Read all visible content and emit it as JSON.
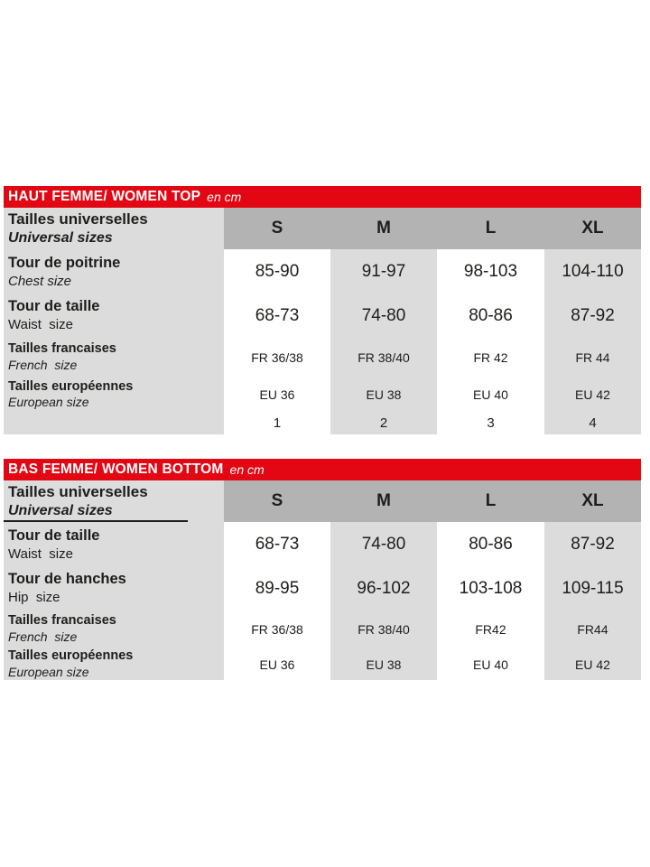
{
  "colors": {
    "accent_red": "#e30613",
    "header_gray": "#b3b3b3",
    "cell_gray": "#dcdcdc",
    "text": "#1d1d1b",
    "title_text": "#ffffff"
  },
  "table_top": {
    "title": "HAUT FEMME/ WOMEN TOP",
    "unit": "en cm",
    "header": {
      "fr": "Tailles universelles",
      "en": "Universal sizes",
      "cols": [
        "S",
        "M",
        "L",
        "XL"
      ]
    },
    "rows": [
      {
        "fr": "Tour de poitrine",
        "en": "Chest size",
        "values": [
          "85-90",
          "91-97",
          "98-103",
          "104-110"
        ]
      },
      {
        "fr": "Tour de taille",
        "en": "Waist  size",
        "values": [
          "68-73",
          "74-80",
          "80-86",
          "87-92"
        ]
      },
      {
        "fr": "Tailles francaises",
        "en": "French  size",
        "values": [
          "FR 36/38",
          "FR 38/40",
          "FR 42",
          "FR 44"
        ]
      },
      {
        "fr": "Tailles européennes",
        "en": "European size",
        "values": [
          "EU 36",
          "EU 38",
          "EU 40",
          "EU 42"
        ]
      },
      {
        "fr": "",
        "en": "",
        "values": [
          "1",
          "2",
          "3",
          "4"
        ]
      }
    ]
  },
  "table_bottom": {
    "title": "BAS FEMME/ WOMEN BOTTOM",
    "unit": "en cm",
    "header": {
      "fr": "Tailles universelles",
      "en": "Universal sizes",
      "cols": [
        "S",
        "M",
        "L",
        "XL"
      ]
    },
    "rows": [
      {
        "fr": "Tour de taille",
        "en": "Waist  size",
        "values": [
          "68-73",
          "74-80",
          "80-86",
          "87-92"
        ]
      },
      {
        "fr": "Tour de hanches",
        "en": "Hip  size",
        "values": [
          "89-95",
          "96-102",
          "103-108",
          "109-115"
        ]
      },
      {
        "fr": "Tailles francaises",
        "en": "French  size",
        "values": [
          "FR 36/38",
          "FR 38/40",
          "FR42",
          "FR44"
        ]
      },
      {
        "fr": "Tailles européennes",
        "en": "European size",
        "values": [
          "EU 36",
          "EU 38",
          "EU 40",
          "EU 42"
        ]
      }
    ]
  }
}
